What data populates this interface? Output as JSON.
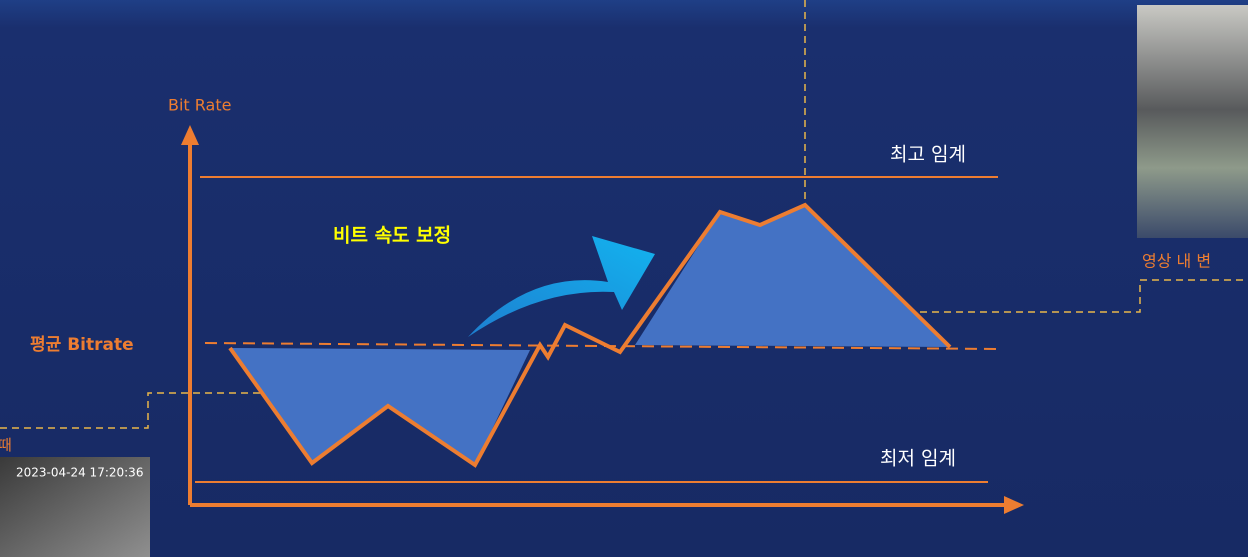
{
  "axis_label": "Bit Rate",
  "labels": {
    "max_threshold": "최고 임계",
    "min_threshold": "최저 임계",
    "average": "평균 Bitrate",
    "correction": "비트 속도 보정"
  },
  "captions": {
    "right": "영상 내 변",
    "left": "때"
  },
  "timestamp": "2023-04-24 17:20:36"
}
